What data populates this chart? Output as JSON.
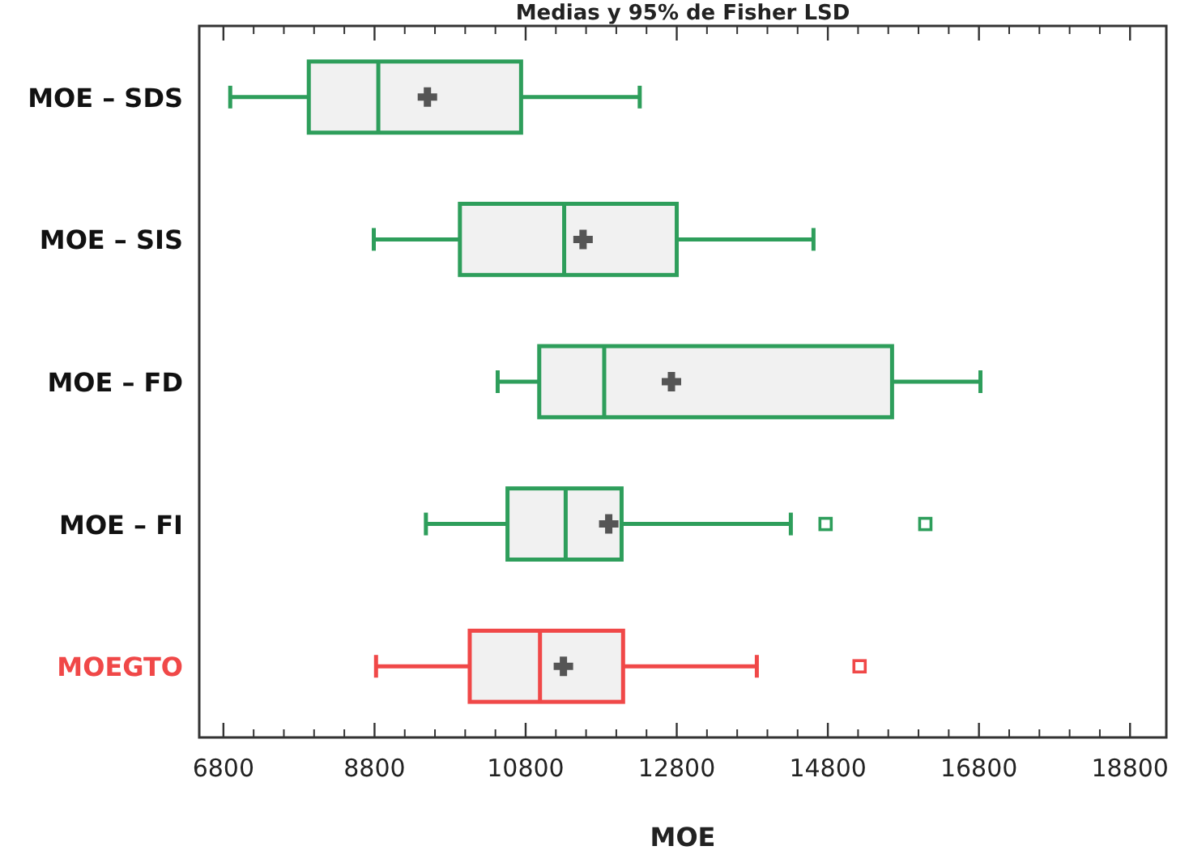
{
  "chart_data": {
    "type": "box",
    "orientation": "horizontal",
    "title": "Medias y 95% de Fisher LSD",
    "xlabel": "MOE",
    "categories": [
      "MOE – SDS",
      "MOE – SIS",
      "MOE – FD",
      "MOE – FI",
      "MOEGTO"
    ],
    "colors": [
      "#2e9e5b",
      "#2e9e5b",
      "#2e9e5b",
      "#2e9e5b",
      "#f04848"
    ],
    "boxes": [
      {
        "low": 6890,
        "q1": 7930,
        "median": 8850,
        "q3": 10740,
        "high": 12310,
        "mean": 9500
      },
      {
        "low": 8790,
        "q1": 9930,
        "median": 11310,
        "q3": 12800,
        "high": 14610,
        "mean": 11560
      },
      {
        "low": 10430,
        "q1": 10980,
        "median": 11840,
        "q3": 15650,
        "high": 16820,
        "mean": 12730
      },
      {
        "low": 9480,
        "q1": 10560,
        "median": 11330,
        "q3": 12070,
        "high": 14310,
        "mean": 11900,
        "outliers": [
          14770,
          16090
        ]
      },
      {
        "low": 8820,
        "q1": 10060,
        "median": 10990,
        "q3": 12090,
        "high": 13860,
        "mean": 11300,
        "outliers": [
          15220
        ]
      }
    ],
    "xlim": [
      6480,
      19280
    ],
    "xticks": [
      6800,
      8800,
      10800,
      12800,
      14800,
      16800,
      18800
    ],
    "grid": false
  }
}
